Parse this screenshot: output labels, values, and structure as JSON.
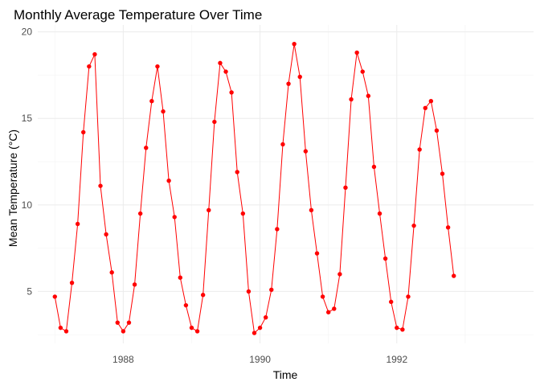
{
  "chart_data": {
    "type": "line",
    "title": "Monthly Average Temperature Over Time",
    "xlabel": "Time",
    "ylabel": "Mean Temperature (°C)",
    "x_tick_labels": [
      "1988",
      "1990",
      "1992"
    ],
    "x_tick_values": [
      1988,
      1990,
      1992
    ],
    "y_tick_labels": [
      "5",
      "10",
      "15",
      "20"
    ],
    "y_tick_values": [
      5,
      10,
      15,
      20
    ],
    "xlim": [
      1986.75,
      1994.0
    ],
    "ylim": [
      2.0,
      20.4
    ],
    "grid": true,
    "legend": "none",
    "color": "#ff0000",
    "series": [
      {
        "x_start": "1987-01",
        "frequency": "monthly",
        "values": [
          4.7,
          2.9,
          2.7,
          5.5,
          8.9,
          14.2,
          18.0,
          18.7,
          11.1,
          8.3,
          6.1,
          3.2,
          2.7,
          3.2,
          5.4,
          9.5,
          13.3,
          16.0,
          18.0,
          15.4,
          11.4,
          9.3,
          5.8,
          4.2,
          2.9,
          2.7,
          4.8,
          9.7,
          14.8,
          18.2,
          17.7,
          16.5,
          11.9,
          9.5,
          5.0,
          2.6,
          2.9,
          3.5,
          5.1,
          8.6,
          13.5,
          17.0,
          19.3,
          17.4,
          13.1,
          9.7,
          7.2,
          4.7,
          3.8,
          4.0,
          6.0,
          11.0,
          16.1,
          18.8,
          17.7,
          16.3,
          12.2,
          9.5,
          6.9,
          4.4,
          2.9,
          2.8,
          4.7,
          8.8,
          13.2,
          15.6,
          16.0,
          14.3,
          11.8,
          8.7,
          5.9
        ]
      }
    ]
  }
}
